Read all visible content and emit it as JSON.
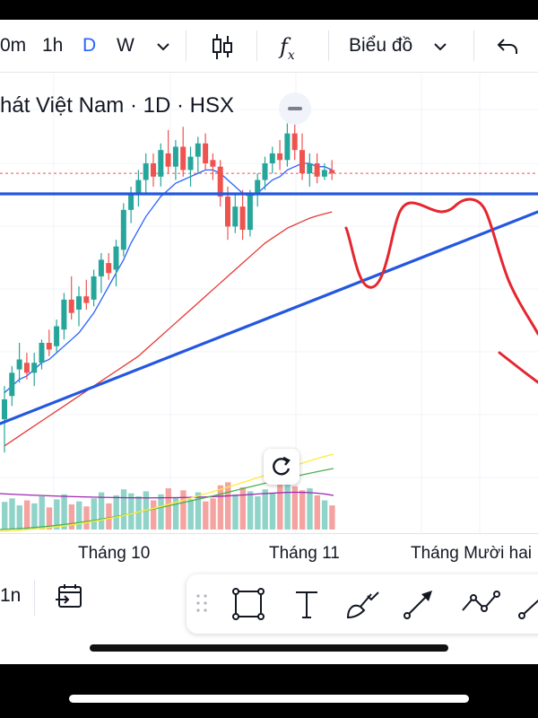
{
  "toolbar": {
    "intervals": [
      "0m",
      "1h",
      "D",
      "W"
    ],
    "active_interval": "D",
    "chart_type_label": "Biểu đồ"
  },
  "legend": {
    "title": "hát Việt Nam · 1D · HSX"
  },
  "bottom": {
    "interval_label": "1n"
  },
  "colors": {
    "up": "#26a69a",
    "down": "#ef5350",
    "trend_blue": "#2457e0",
    "drawing_red": "#e5262f",
    "ma_fast": "#2962ff",
    "ma_slow": "#e53935",
    "vol_ma1": "#ffeb3b",
    "vol_ma2": "#4caf50",
    "vol_ma3": "#9c27b0"
  },
  "chart_data": {
    "type": "candlestick",
    "title": "hát Việt Nam · 1D · HSX",
    "x_tick_labels": [
      "Tháng 10",
      "Tháng 11",
      "Tháng Mười hai"
    ],
    "candles": [
      {
        "o": 46.6,
        "h": 47.6,
        "l": 45.6,
        "c": 47.2
      },
      {
        "o": 47.3,
        "h": 48.2,
        "l": 47.0,
        "c": 48.0
      },
      {
        "o": 48.1,
        "h": 48.9,
        "l": 47.7,
        "c": 48.4
      },
      {
        "o": 48.3,
        "h": 48.6,
        "l": 47.8,
        "c": 48.0
      },
      {
        "o": 48.0,
        "h": 48.6,
        "l": 47.6,
        "c": 48.3
      },
      {
        "o": 48.3,
        "h": 49.0,
        "l": 48.1,
        "c": 48.9
      },
      {
        "o": 48.9,
        "h": 49.3,
        "l": 48.5,
        "c": 48.7
      },
      {
        "o": 48.8,
        "h": 49.6,
        "l": 48.6,
        "c": 49.4
      },
      {
        "o": 49.3,
        "h": 50.4,
        "l": 49.0,
        "c": 50.2
      },
      {
        "o": 50.2,
        "h": 50.9,
        "l": 49.6,
        "c": 49.8
      },
      {
        "o": 49.9,
        "h": 50.6,
        "l": 49.4,
        "c": 50.3
      },
      {
        "o": 50.3,
        "h": 50.8,
        "l": 49.9,
        "c": 50.1
      },
      {
        "o": 50.2,
        "h": 51.1,
        "l": 50.0,
        "c": 50.9
      },
      {
        "o": 50.9,
        "h": 51.6,
        "l": 50.4,
        "c": 51.4
      },
      {
        "o": 51.3,
        "h": 51.6,
        "l": 50.8,
        "c": 51.0
      },
      {
        "o": 51.1,
        "h": 52.0,
        "l": 50.6,
        "c": 51.8
      },
      {
        "o": 51.7,
        "h": 53.1,
        "l": 51.5,
        "c": 52.9
      },
      {
        "o": 52.9,
        "h": 53.6,
        "l": 52.5,
        "c": 53.4
      },
      {
        "o": 53.4,
        "h": 54.1,
        "l": 53.0,
        "c": 53.8
      },
      {
        "o": 53.8,
        "h": 54.6,
        "l": 53.4,
        "c": 54.3
      },
      {
        "o": 54.3,
        "h": 54.6,
        "l": 53.6,
        "c": 53.9
      },
      {
        "o": 53.9,
        "h": 54.9,
        "l": 53.6,
        "c": 54.7
      },
      {
        "o": 54.6,
        "h": 55.3,
        "l": 54.0,
        "c": 54.2
      },
      {
        "o": 54.2,
        "h": 55.0,
        "l": 53.8,
        "c": 54.8
      },
      {
        "o": 54.8,
        "h": 55.4,
        "l": 53.9,
        "c": 54.1
      },
      {
        "o": 54.1,
        "h": 54.8,
        "l": 53.6,
        "c": 54.5
      },
      {
        "o": 54.5,
        "h": 55.1,
        "l": 54.0,
        "c": 54.9
      },
      {
        "o": 54.9,
        "h": 55.2,
        "l": 54.1,
        "c": 54.3
      },
      {
        "o": 54.4,
        "h": 54.6,
        "l": 53.8,
        "c": 54.2
      },
      {
        "o": 54.2,
        "h": 54.4,
        "l": 53.0,
        "c": 53.3
      },
      {
        "o": 53.3,
        "h": 53.6,
        "l": 52.0,
        "c": 52.4
      },
      {
        "o": 52.4,
        "h": 53.4,
        "l": 52.2,
        "c": 53.0
      },
      {
        "o": 53.0,
        "h": 53.5,
        "l": 52.0,
        "c": 52.3
      },
      {
        "o": 52.3,
        "h": 53.5,
        "l": 52.1,
        "c": 53.4
      },
      {
        "o": 53.4,
        "h": 54.0,
        "l": 53.0,
        "c": 53.8
      },
      {
        "o": 53.8,
        "h": 54.5,
        "l": 53.5,
        "c": 54.3
      },
      {
        "o": 54.3,
        "h": 54.8,
        "l": 54.0,
        "c": 54.6
      },
      {
        "o": 54.6,
        "h": 55.0,
        "l": 54.1,
        "c": 54.4
      },
      {
        "o": 54.4,
        "h": 55.5,
        "l": 54.2,
        "c": 55.2
      },
      {
        "o": 55.2,
        "h": 55.6,
        "l": 54.4,
        "c": 54.7
      },
      {
        "o": 54.7,
        "h": 55.2,
        "l": 53.8,
        "c": 54.0
      },
      {
        "o": 54.0,
        "h": 54.6,
        "l": 53.6,
        "c": 54.3
      },
      {
        "o": 54.3,
        "h": 54.6,
        "l": 53.7,
        "c": 53.9
      },
      {
        "o": 53.9,
        "h": 54.3,
        "l": 53.8,
        "c": 54.1
      },
      {
        "o": 54.1,
        "h": 54.4,
        "l": 53.8,
        "c": 54.0
      }
    ],
    "volume": [
      0.55,
      0.62,
      0.48,
      0.58,
      0.52,
      0.66,
      0.44,
      0.6,
      0.7,
      0.5,
      0.56,
      0.46,
      0.62,
      0.74,
      0.52,
      0.68,
      0.8,
      0.72,
      0.66,
      0.76,
      0.58,
      0.7,
      0.82,
      0.64,
      0.78,
      0.6,
      0.74,
      0.56,
      0.62,
      0.88,
      0.94,
      0.7,
      0.84,
      0.76,
      0.66,
      0.8,
      0.72,
      0.9,
      0.96,
      0.86,
      0.78,
      0.82,
      0.68,
      0.58,
      0.48
    ],
    "ma_fast": [
      47.4,
      47.6,
      47.8,
      47.9,
      48.1,
      48.3,
      48.4,
      48.6,
      48.8,
      49.0,
      49.2,
      49.5,
      49.8,
      50.2,
      50.6,
      51.0,
      51.4,
      51.9,
      52.3,
      52.7,
      53.0,
      53.3,
      53.5,
      53.7,
      53.8,
      53.9,
      54.0,
      54.1,
      54.1,
      54.0,
      53.8,
      53.6,
      53.4,
      53.3,
      53.4,
      53.6,
      53.8,
      53.9,
      54.1,
      54.2,
      54.3,
      54.3,
      54.2,
      54.2,
      54.1
    ],
    "ma_slow": [
      45.8,
      45.95,
      46.1,
      46.25,
      46.4,
      46.55,
      46.7,
      46.85,
      47.0,
      47.15,
      47.3,
      47.45,
      47.6,
      47.75,
      47.9,
      48.05,
      48.2,
      48.35,
      48.5,
      48.7,
      48.9,
      49.1,
      49.3,
      49.5,
      49.7,
      49.9,
      50.1,
      50.3,
      50.5,
      50.7,
      50.9,
      51.1,
      51.3,
      51.5,
      51.7,
      51.9,
      52.05,
      52.2,
      52.35,
      52.45,
      52.55,
      52.65,
      52.72,
      52.78,
      52.84
    ],
    "price_line": 54.0,
    "y_range": [
      43.5,
      57.0
    ]
  }
}
